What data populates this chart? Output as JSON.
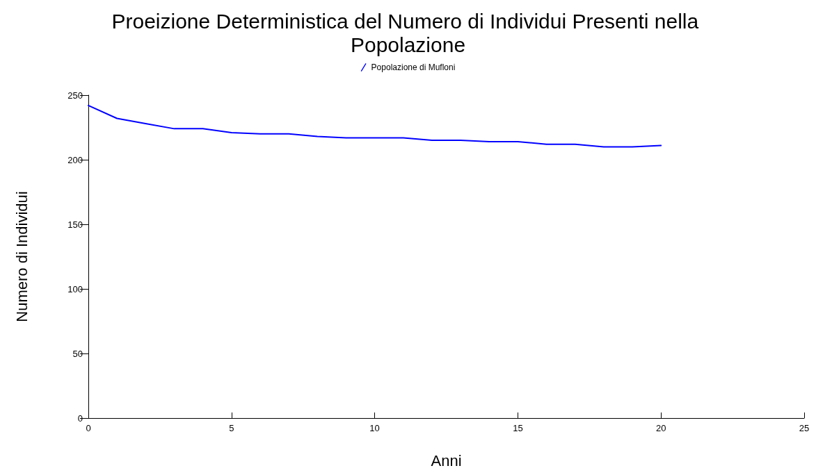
{
  "chart_data": {
    "type": "line",
    "title": "Proeizione Deterministica del Numero di Individui Presenti nella Popolazione",
    "xlabel": "Anni",
    "ylabel": "Numero di Individui",
    "x": [
      0,
      1,
      2,
      3,
      4,
      5,
      6,
      7,
      8,
      9,
      10,
      11,
      12,
      13,
      14,
      15,
      16,
      17,
      18,
      19,
      20
    ],
    "series": [
      {
        "name": "Popolazione di Mufloni",
        "color": "#0000ff",
        "values": [
          242,
          232,
          228,
          224,
          224,
          221,
          220,
          220,
          218,
          217,
          217,
          217,
          215,
          215,
          214,
          214,
          212,
          212,
          210,
          210,
          211
        ]
      }
    ],
    "xlim": [
      0,
      25
    ],
    "xticks": [
      0,
      5,
      10,
      15,
      20,
      25
    ],
    "ylim": [
      0,
      250
    ],
    "yticks": [
      0,
      50,
      100,
      150,
      200,
      250
    ],
    "grid": false,
    "legend": "top",
    "marker": "none",
    "line_style": "solid"
  }
}
